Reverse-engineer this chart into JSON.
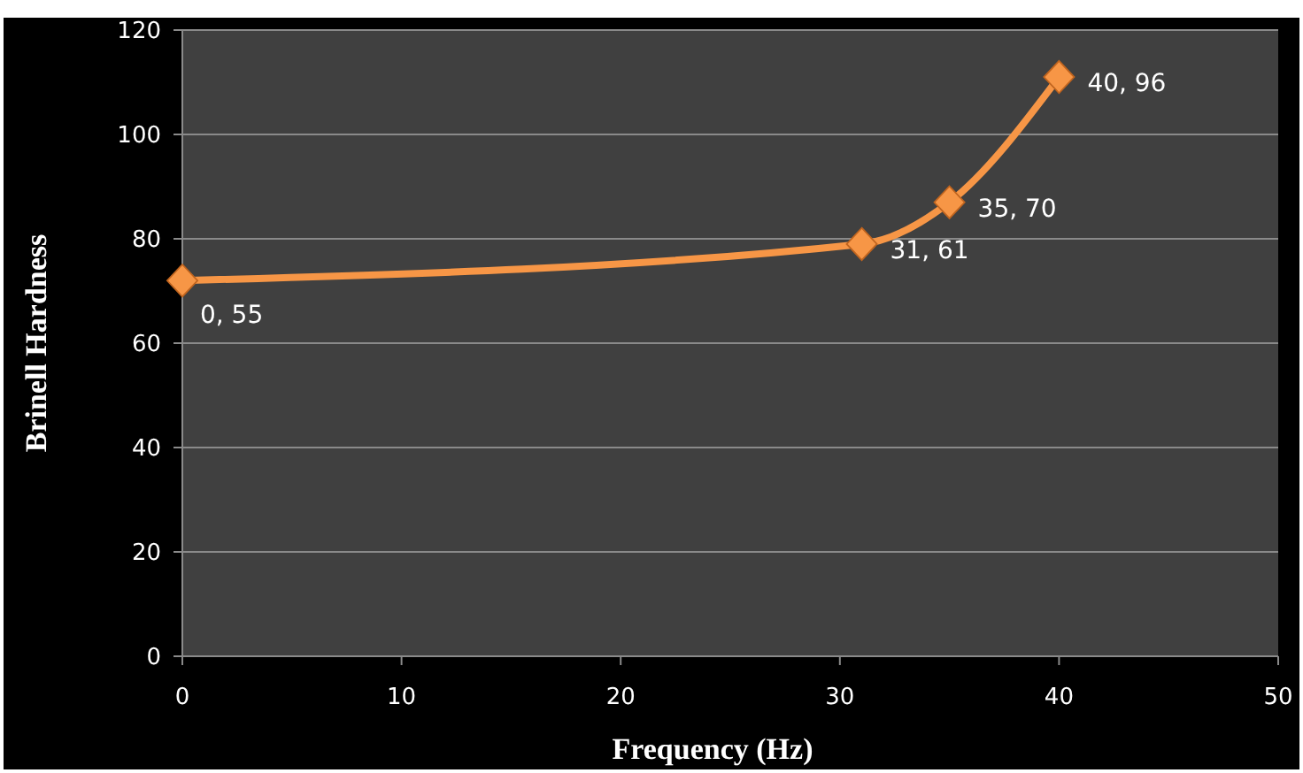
{
  "chart_data": {
    "type": "line",
    "xlabel": "Frequency (Hz)",
    "ylabel": "Brinell Hardness",
    "x": [
      0,
      31,
      35,
      40
    ],
    "series": [
      {
        "color": "#f79646",
        "values": [
          72,
          79,
          87,
          111
        ]
      }
    ],
    "xlim": [
      0,
      50
    ],
    "xticks": [
      0,
      10,
      20,
      30,
      40,
      50
    ],
    "ylim": [
      0,
      120
    ],
    "yticks": [
      0,
      20,
      40,
      60,
      80,
      100,
      120
    ],
    "grid": "y",
    "marker": "diamond",
    "line_style": "solid",
    "annotations": [
      {
        "text": "0, 55",
        "x": 0,
        "y": 72
      },
      {
        "text": "31, 61",
        "x": 31,
        "y": 79
      },
      {
        "text": "35, 70",
        "x": 35,
        "y": 87
      },
      {
        "text": "40, 96",
        "x": 40,
        "y": 111
      }
    ]
  }
}
